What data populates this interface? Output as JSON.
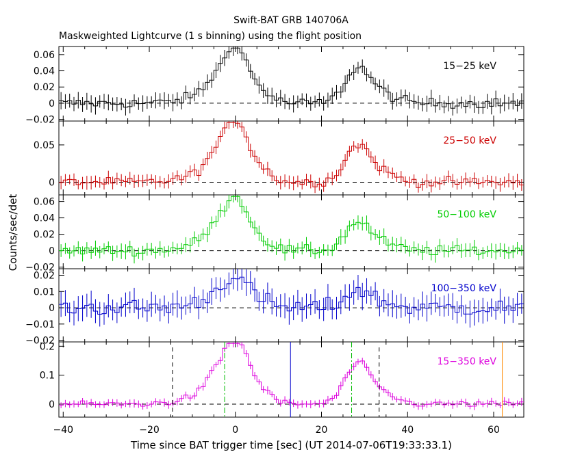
{
  "chart_data": {
    "type": "line",
    "title": "Swift-BAT GRB 140706A",
    "subtitle": "Maskweighted Lightcurve (1 s binning) using the flight position",
    "xlabel": "Time since BAT trigger time [sec] (UT 2014-07-06T19:33:33.1)",
    "ylabel": "Counts/sec/det",
    "xlim": [
      -41,
      67
    ],
    "x_ticks": [
      -40,
      -20,
      0,
      20,
      40,
      60
    ],
    "panels": [
      {
        "name": "15-25 keV",
        "label": "15−25 keV",
        "color": "#000000",
        "ylim": [
          -0.022,
          0.07
        ],
        "ticks": [
          {
            "v": -0.02,
            "t": "−0.02"
          },
          {
            "v": 0,
            "t": "0"
          },
          {
            "v": 0.02,
            "t": "0.02"
          },
          {
            "v": 0.04,
            "t": "0.04"
          },
          {
            "v": 0.06,
            "t": "0.06"
          }
        ],
        "peaks": [
          0.058,
          0.044
        ],
        "noise": 0.006,
        "err": 0.009
      },
      {
        "name": "25-50 keV",
        "label": "25−50 keV",
        "color": "#cc0000",
        "ylim": [
          -0.017,
          0.082
        ],
        "ticks": [
          {
            "v": 0,
            "t": "0"
          },
          {
            "v": 0.05,
            "t": "0.05"
          }
        ],
        "peaks": [
          0.07,
          0.05
        ],
        "noise": 0.006,
        "err": 0.008
      },
      {
        "name": "50-100 keV",
        "label": "50−100 keV",
        "color": "#00cc00",
        "ylim": [
          -0.022,
          0.068
        ],
        "ticks": [
          {
            "v": -0.02,
            "t": "−0.02"
          },
          {
            "v": 0,
            "t": "0"
          },
          {
            "v": 0.02,
            "t": "0.02"
          },
          {
            "v": 0.04,
            "t": "0.04"
          },
          {
            "v": 0.06,
            "t": "0.06"
          }
        ],
        "peaks": [
          0.055,
          0.035
        ],
        "noise": 0.006,
        "err": 0.008
      },
      {
        "name": "100-350 keV",
        "label": "100−350 keV",
        "color": "#0000cc",
        "ylim": [
          -0.021,
          0.024
        ],
        "ticks": [
          {
            "v": -0.02,
            "t": "−0.02"
          },
          {
            "v": -0.01,
            "t": "−0.01"
          },
          {
            "v": 0,
            "t": "0"
          },
          {
            "v": 0.01,
            "t": "0.01"
          },
          {
            "v": 0.02,
            "t": "0.02"
          }
        ],
        "peaks": [
          0.016,
          0.011
        ],
        "noise": 0.005,
        "err": 0.007
      },
      {
        "name": "15-350 keV",
        "label": "15−350 keV",
        "color": "#dd00dd",
        "ylim": [
          -0.045,
          0.215
        ],
        "ticks": [
          {
            "v": 0,
            "t": "0"
          },
          {
            "v": 0.1,
            "t": "0.1"
          },
          {
            "v": 0.2,
            "t": "0.2"
          }
        ],
        "peaks": [
          0.195,
          0.14
        ],
        "noise": 0.01,
        "err": 0.012
      }
    ],
    "markers": [
      {
        "x": -14.6,
        "color": "#000000",
        "style": "dashed",
        "name": "t-start-marker"
      },
      {
        "x": 33.4,
        "color": "#000000",
        "style": "dashed",
        "name": "t-end-marker"
      },
      {
        "x": -2.5,
        "color": "#00bb00",
        "style": "dashdot",
        "name": "t90-start-marker"
      },
      {
        "x": 27.0,
        "color": "#00bb00",
        "style": "dashdot",
        "name": "t90-end-marker"
      },
      {
        "x": 12.8,
        "color": "#0000cc",
        "style": "solid",
        "name": "blue-marker"
      },
      {
        "x": 62.0,
        "color": "#ff8800",
        "style": "solid",
        "name": "orange-marker"
      }
    ]
  }
}
